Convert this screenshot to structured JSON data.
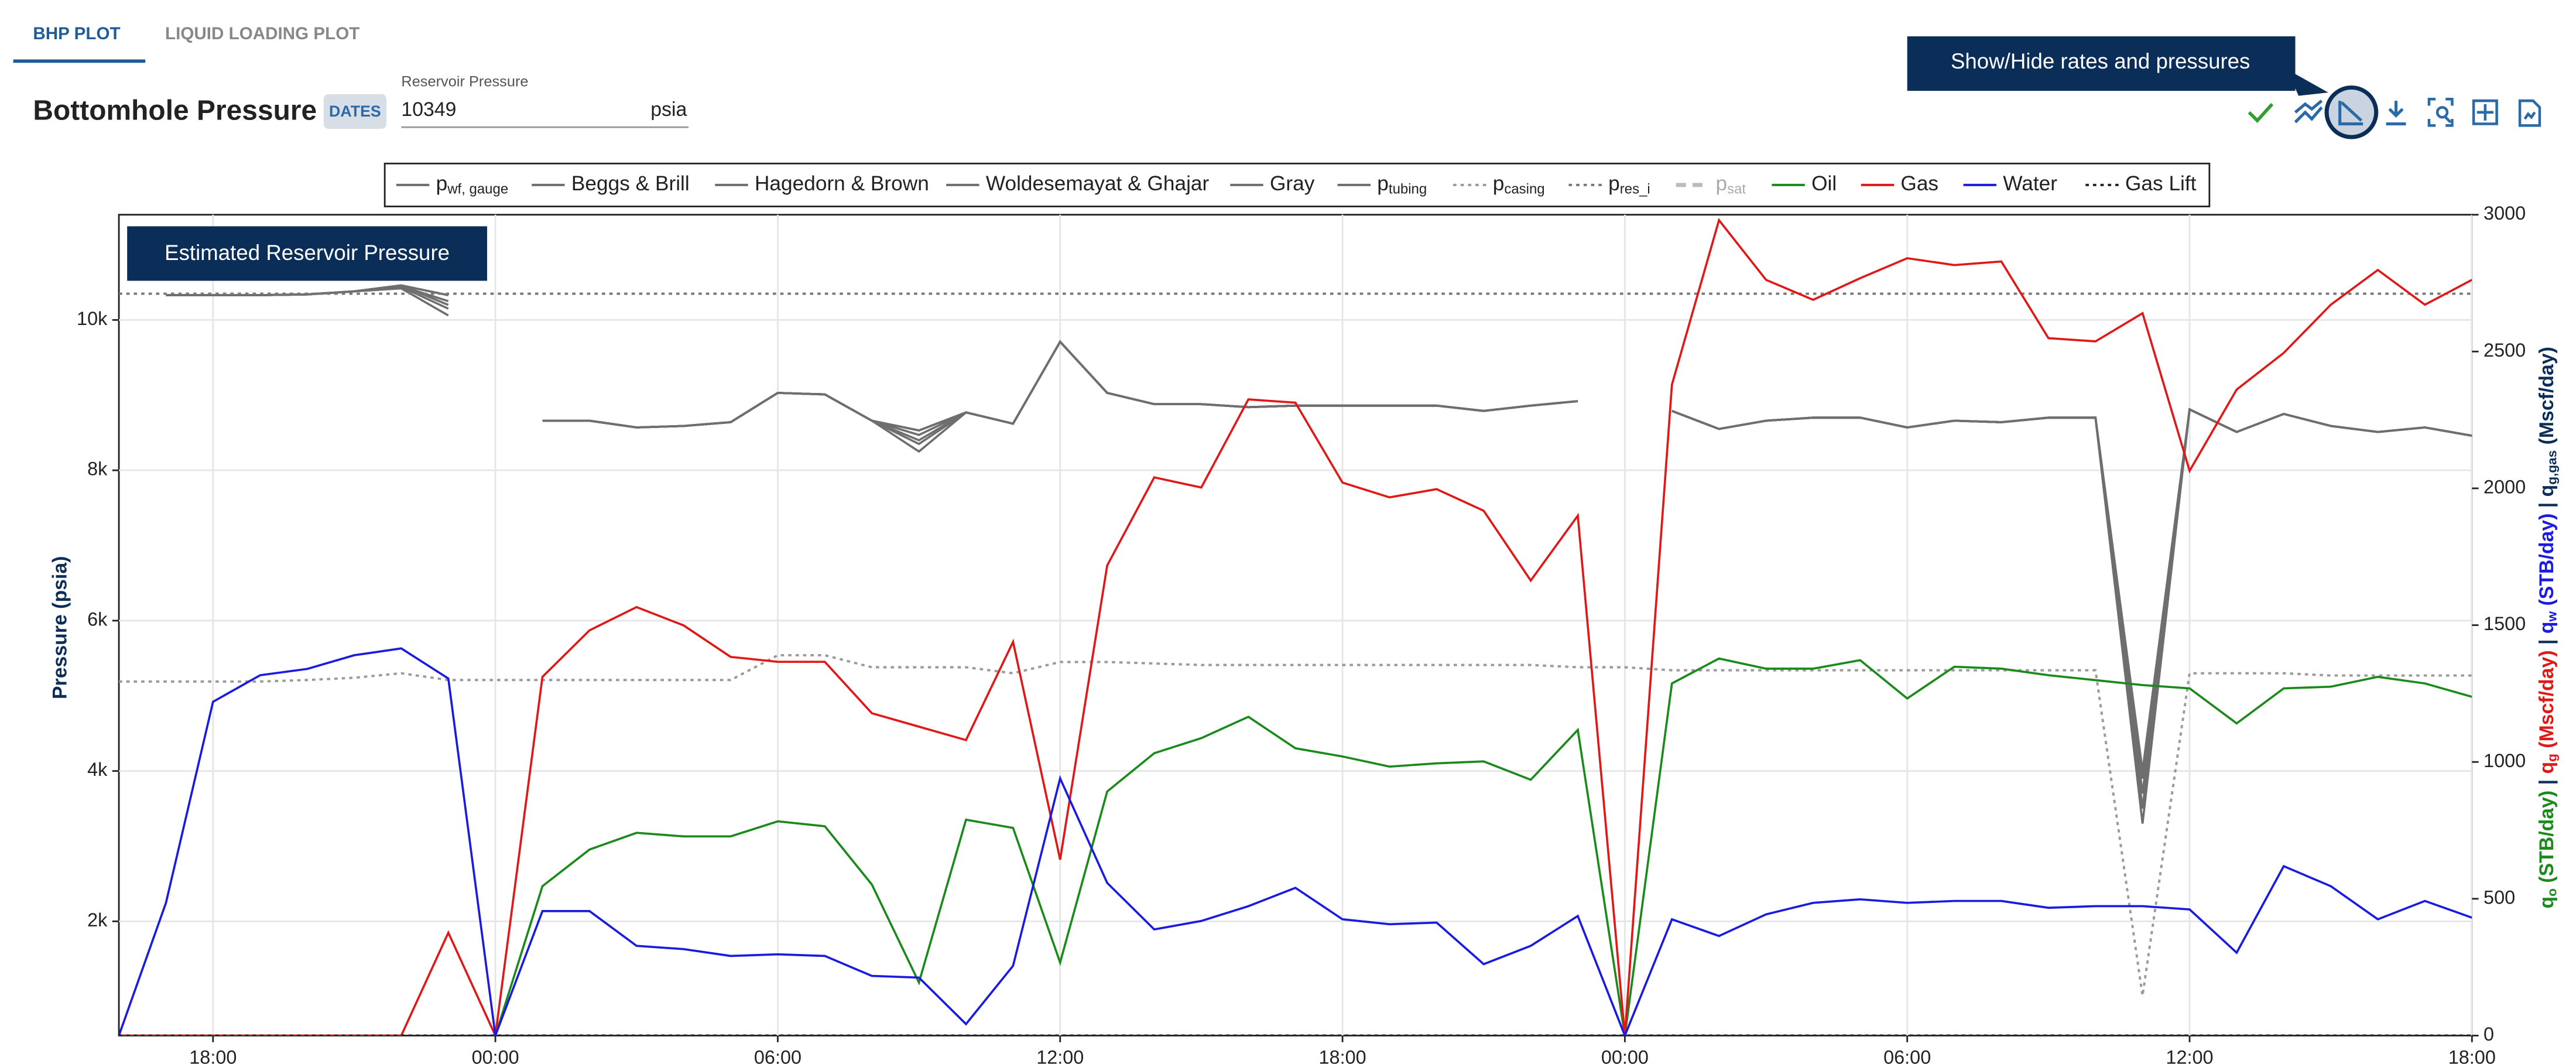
{
  "tabs": [
    "BHP PLOT",
    "LIQUID LOADING PLOT"
  ],
  "header": {
    "title": "Bottomhole Pressure",
    "dates_button": "DATES",
    "field_label": "Reservoir Pressure",
    "field_value": "10349",
    "field_unit": "psia"
  },
  "tooltip": "Show/Hide rates and pressures",
  "chart_data": {
    "type": "line",
    "annotation": "Estimated Reservoir Pressure",
    "ylabel": "Pressure (psia)",
    "y2label": [
      {
        "symbol": "q",
        "sub": "o",
        "unit": " (STB/day)",
        "color": "#1a8a1a"
      },
      {
        "symbol": "q",
        "sub": "g",
        "unit": " (Mscf/day)",
        "color": "#e01818"
      },
      {
        "symbol": "q",
        "sub": "w",
        "unit": " (STB/day)",
        "color": "#1a1ae0"
      },
      {
        "symbol": "q",
        "sub": "g,gas",
        "unit": " (Mscf/day)",
        "color": "#0b2e59"
      }
    ],
    "y2label_separator": " | ",
    "grid": true,
    "x": [
      0,
      1,
      2,
      3,
      4,
      5,
      6,
      7,
      8,
      9,
      10,
      11,
      12,
      13,
      14,
      15,
      16,
      17,
      18,
      19,
      20,
      21,
      22,
      23,
      24,
      25,
      26,
      27,
      28,
      29,
      30,
      31,
      32,
      33,
      34,
      35,
      36,
      37,
      38,
      39,
      40,
      41,
      42,
      43,
      44,
      45,
      46,
      47,
      48,
      49,
      50
    ],
    "xlim": [
      0,
      50
    ],
    "xticks": [
      {
        "value": 2,
        "label": "18:00"
      },
      {
        "value": 8,
        "label": "00:00"
      },
      {
        "value": 14,
        "label": "06:00"
      },
      {
        "value": 20,
        "label": "12:00"
      },
      {
        "value": 26,
        "label": "18:00"
      },
      {
        "value": 32,
        "label": "00:00"
      },
      {
        "value": 38,
        "label": "06:00"
      },
      {
        "value": 44,
        "label": "12:00"
      },
      {
        "value": 50,
        "label": "18:00"
      }
    ],
    "ylim": [
      480,
      11400
    ],
    "yticks": [
      {
        "value": 2000,
        "label": "2k"
      },
      {
        "value": 4000,
        "label": "4k"
      },
      {
        "value": 6000,
        "label": "6k"
      },
      {
        "value": 8000,
        "label": "8k"
      },
      {
        "value": 10000,
        "label": "10k"
      }
    ],
    "y2lim": [
      0,
      3000
    ],
    "y2ticks": [
      0,
      500,
      1000,
      1500,
      2000,
      2500,
      3000
    ],
    "series": [
      {
        "name": "p",
        "sub": "wf, gauge",
        "color": "#6e6e6e",
        "dash": "solid",
        "values": [
          null,
          10330,
          10330,
          10330,
          10340,
          10380,
          10460,
          10330,
          null,
          8660,
          8660,
          8570,
          8590,
          8640,
          9030,
          9010,
          8660,
          8530,
          8770,
          8620,
          9710,
          9030,
          8880,
          8880,
          8840,
          8860,
          8860,
          8860,
          8860,
          8790,
          8860,
          8920,
          null,
          8790,
          8550,
          8660,
          8700,
          8700,
          8570,
          8660,
          8640,
          8700,
          8700,
          3900,
          8810,
          8510,
          8750,
          8590,
          8510,
          8570,
          8460
        ]
      },
      {
        "name": "Beggs & Brill",
        "color": "#6e6e6e",
        "dash": "solid",
        "values": [
          null,
          10330,
          10330,
          10330,
          10340,
          10380,
          10420,
          10060,
          null,
          8660,
          8660,
          8570,
          8590,
          8640,
          9030,
          9010,
          8660,
          8470,
          8770,
          8620,
          9710,
          9030,
          8880,
          8880,
          8840,
          8860,
          8860,
          8860,
          8860,
          8790,
          8860,
          8920,
          null,
          8790,
          8550,
          8660,
          8700,
          8700,
          8570,
          8660,
          8640,
          8700,
          8700,
          3300,
          8810,
          8510,
          8750,
          8590,
          8510,
          8570,
          8460
        ]
      },
      {
        "name": "Hagedorn & Brown",
        "color": "#6e6e6e",
        "dash": "solid",
        "values": [
          null,
          10330,
          10330,
          10330,
          10340,
          10380,
          10440,
          10150,
          null,
          8660,
          8660,
          8570,
          8590,
          8640,
          9030,
          9010,
          8660,
          8350,
          8770,
          8620,
          9710,
          9030,
          8880,
          8880,
          8840,
          8860,
          8860,
          8860,
          8860,
          8790,
          8860,
          8920,
          null,
          8790,
          8550,
          8660,
          8700,
          8700,
          8570,
          8660,
          8640,
          8700,
          8700,
          3500,
          8810,
          8510,
          8750,
          8590,
          8510,
          8570,
          8460
        ]
      },
      {
        "name": "Woldesemayat & Ghajar",
        "color": "#6e6e6e",
        "dash": "solid",
        "values": [
          null,
          10330,
          10330,
          10330,
          10340,
          10380,
          10450,
          10250,
          null,
          8660,
          8660,
          8570,
          8590,
          8640,
          9030,
          9010,
          8660,
          8250,
          8770,
          8620,
          9710,
          9030,
          8880,
          8880,
          8840,
          8860,
          8860,
          8860,
          8860,
          8790,
          8860,
          8920,
          null,
          8790,
          8550,
          8660,
          8700,
          8700,
          8570,
          8660,
          8640,
          8700,
          8700,
          3700,
          8810,
          8510,
          8750,
          8590,
          8510,
          8570,
          8460
        ]
      },
      {
        "name": "Gray",
        "color": "#6e6e6e",
        "dash": "solid",
        "values": [
          null,
          10330,
          10330,
          10330,
          10340,
          10380,
          10460,
          10330,
          null,
          8660,
          8660,
          8570,
          8590,
          8640,
          9030,
          9010,
          8660,
          8530,
          8770,
          8620,
          9710,
          9030,
          8880,
          8880,
          8840,
          8860,
          8860,
          8860,
          8860,
          8790,
          8860,
          8920,
          null,
          8790,
          8550,
          8660,
          8700,
          8700,
          8570,
          8660,
          8640,
          8700,
          8700,
          3900,
          8810,
          8510,
          8750,
          8590,
          8510,
          8570,
          8460
        ]
      },
      {
        "name": "p",
        "sub": "tubing",
        "color": "#6e6e6e",
        "dash": "solid",
        "values": [
          null,
          10330,
          10330,
          10330,
          10340,
          10380,
          10460,
          10200,
          null,
          8660,
          8660,
          8570,
          8590,
          8640,
          9030,
          9010,
          8660,
          8400,
          8770,
          8620,
          9710,
          9030,
          8880,
          8880,
          8840,
          8860,
          8860,
          8860,
          8860,
          8790,
          8860,
          8920,
          null,
          8790,
          8550,
          8660,
          8700,
          8700,
          8570,
          8660,
          8640,
          8700,
          8700,
          4000,
          8810,
          8510,
          8750,
          8590,
          8510,
          8570,
          8460
        ]
      },
      {
        "name": "p",
        "sub": "casing",
        "color": "#9a9a9a",
        "dash": "dotted",
        "values": [
          5190,
          5190,
          5190,
          5190,
          5210,
          5240,
          5300,
          5210,
          5210,
          5210,
          5210,
          5210,
          5210,
          5210,
          5540,
          5540,
          5380,
          5380,
          5380,
          5300,
          5450,
          5450,
          5430,
          5410,
          5410,
          5410,
          5410,
          5410,
          5410,
          5410,
          5410,
          5380,
          5380,
          5340,
          5340,
          5340,
          5340,
          5340,
          5340,
          5340,
          5340,
          5340,
          5340,
          1010,
          5300,
          5300,
          5300,
          5270,
          5270,
          5270,
          5270
        ]
      },
      {
        "name": "p",
        "sub": "res_i",
        "color": "#777777",
        "dash": "dotted",
        "values": [
          10349,
          10349,
          10349,
          10349,
          10349,
          10349,
          10349,
          10349,
          10349,
          10349,
          10349,
          10349,
          10349,
          10349,
          10349,
          10349,
          10349,
          10349,
          10349,
          10349,
          10349,
          10349,
          10349,
          10349,
          10349,
          10349,
          10349,
          10349,
          10349,
          10349,
          10349,
          10349,
          10349,
          10349,
          10349,
          10349,
          10349,
          10349,
          10349,
          10349,
          10349,
          10349,
          10349,
          10349,
          10349,
          10349,
          10349,
          10349,
          10349,
          10349,
          10349
        ]
      },
      {
        "name": "p",
        "sub": "sat",
        "color": "#bbbbbb",
        "dash": "dashed",
        "visible": false
      },
      {
        "name": "Oil",
        "color": "#1a8a1a",
        "dash": "solid",
        "axis": "y2",
        "values": [
          null,
          null,
          null,
          null,
          null,
          null,
          null,
          null,
          0,
          546,
          680,
          741,
          728,
          728,
          783,
          765,
          552,
          194,
          789,
          759,
          267,
          892,
          1032,
          1087,
          1165,
          1050,
          1020,
          983,
          995,
          1002,
          935,
          1117,
          0,
          1287,
          1378,
          1341,
          1341,
          1372,
          1232,
          1348,
          1341,
          1317,
          1299,
          1281,
          1269,
          1141,
          1269,
          1275,
          1311,
          1287,
          1238
        ]
      },
      {
        "name": "Gas",
        "color": "#e01818",
        "dash": "solid",
        "axis": "y2",
        "values": [
          0,
          0,
          0,
          0,
          0,
          0,
          0,
          376,
          0,
          1311,
          1481,
          1566,
          1499,
          1384,
          1366,
          1366,
          1178,
          1129,
          1080,
          1439,
          643,
          1718,
          2040,
          2003,
          2325,
          2313,
          2021,
          1967,
          1997,
          1918,
          1663,
          1900,
          0,
          2379,
          2980,
          2762,
          2689,
          2768,
          2841,
          2816,
          2829,
          2549,
          2537,
          2640,
          2064,
          2361,
          2495,
          2671,
          2798,
          2671,
          2762
        ]
      },
      {
        "name": "Water",
        "color": "#1a1ae0",
        "dash": "solid",
        "axis": "y2",
        "values": [
          0,
          485,
          1220,
          1317,
          1340,
          1390,
          1415,
          1305,
          0,
          455,
          455,
          328,
          316,
          291,
          297,
          291,
          218,
          212,
          42,
          255,
          940,
          558,
          388,
          419,
          473,
          540,
          425,
          407,
          413,
          261,
          328,
          437,
          0,
          425,
          364,
          443,
          485,
          498,
          485,
          492,
          492,
          467,
          473,
          473,
          461,
          303,
          619,
          546,
          425,
          492,
          431
        ]
      },
      {
        "name": "Gas Lift",
        "color": "#222222",
        "dash": "dotted",
        "axis": "y2",
        "values": [
          0,
          0,
          0,
          0,
          0,
          0,
          0,
          0,
          0,
          0,
          0,
          0,
          0,
          0,
          0,
          0,
          0,
          0,
          0,
          0,
          0,
          0,
          0,
          0,
          0,
          0,
          0,
          0,
          0,
          0,
          0,
          0,
          0,
          0,
          0,
          0,
          0,
          0,
          0,
          0,
          0,
          0,
          0,
          0,
          0,
          0,
          0,
          0,
          0,
          0,
          0
        ]
      }
    ]
  }
}
